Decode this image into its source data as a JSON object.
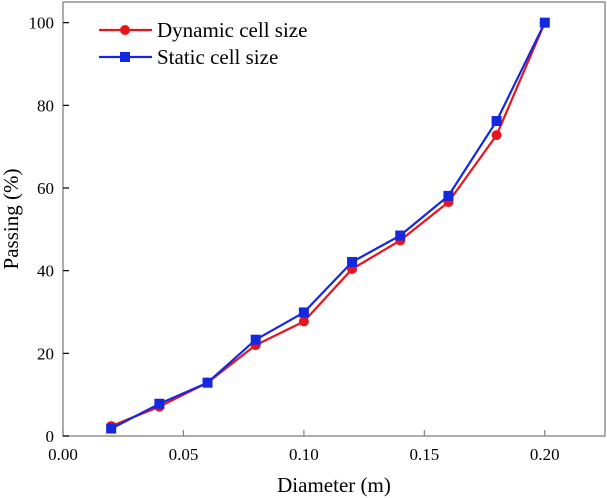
{
  "chart_data": {
    "type": "line",
    "title": "",
    "xlabel": "Diameter (m)",
    "ylabel": "Passing (%)",
    "xlim": [
      0,
      0.225
    ],
    "ylim": [
      0,
      105
    ],
    "xticks": [
      0.0,
      0.05,
      0.1,
      0.15,
      0.2
    ],
    "xtick_labels": [
      "0.00",
      "0.05",
      "0.10",
      "0.15",
      "0.20"
    ],
    "yticks": [
      0,
      20,
      40,
      60,
      80,
      100
    ],
    "ytick_labels": [
      "0",
      "20",
      "40",
      "60",
      "80",
      "100"
    ],
    "grid": false,
    "legend_position": "top-left",
    "x": [
      0.02,
      0.04,
      0.06,
      0.08,
      0.1,
      0.12,
      0.14,
      0.16,
      0.18,
      0.2
    ],
    "series": [
      {
        "name": "Dynamic cell size",
        "color": "#e8141c",
        "marker": "circle",
        "values": [
          2.4,
          7.1,
          12.9,
          22.0,
          27.7,
          40.4,
          47.3,
          56.6,
          72.8,
          100
        ]
      },
      {
        "name": "Static cell size",
        "color": "#1428e0",
        "marker": "square",
        "values": [
          1.8,
          7.8,
          12.9,
          23.3,
          29.9,
          42.1,
          48.5,
          58.1,
          76.2,
          100
        ]
      }
    ]
  }
}
